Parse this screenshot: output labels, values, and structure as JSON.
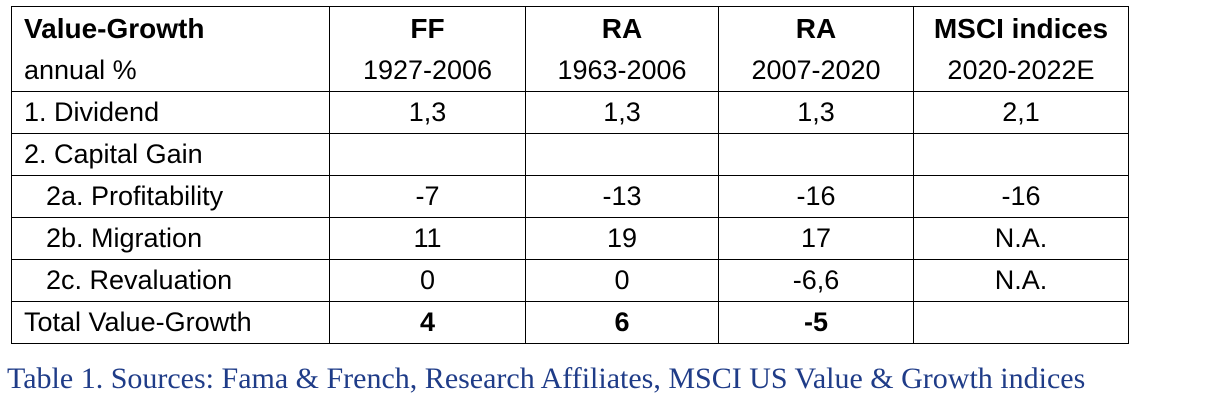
{
  "table": {
    "header": {
      "title": "Value-Growth",
      "subtitle": "annual %",
      "columns": [
        {
          "name": "FF",
          "period": "1927-2006"
        },
        {
          "name": "RA",
          "period": "1963-2006"
        },
        {
          "name": "RA",
          "period": "2007-2020"
        },
        {
          "name": "MSCI indices",
          "period": "2020-2022E"
        }
      ]
    },
    "rows": [
      {
        "label": "1. Dividend",
        "values": [
          "1,3",
          "1,3",
          "1,3",
          "2,1"
        ]
      },
      {
        "label": "2. Capital Gain",
        "values": [
          "",
          "",
          "",
          ""
        ]
      },
      {
        "label": "2a. Profitability",
        "values": [
          "-7",
          "-13",
          "-16",
          "-16"
        ]
      },
      {
        "label": "2b. Migration",
        "values": [
          "11",
          "19",
          "17",
          "N.A."
        ]
      },
      {
        "label": "2c. Revaluation",
        "values": [
          "0",
          "0",
          "-6,6",
          "N.A."
        ]
      },
      {
        "label": "Total Value-Growth",
        "values": [
          "4",
          "6",
          "-5",
          ""
        ]
      }
    ]
  },
  "caption": "Table 1. Sources: Fama & French, Research Affiliates, MSCI US Value & Growth indices"
}
